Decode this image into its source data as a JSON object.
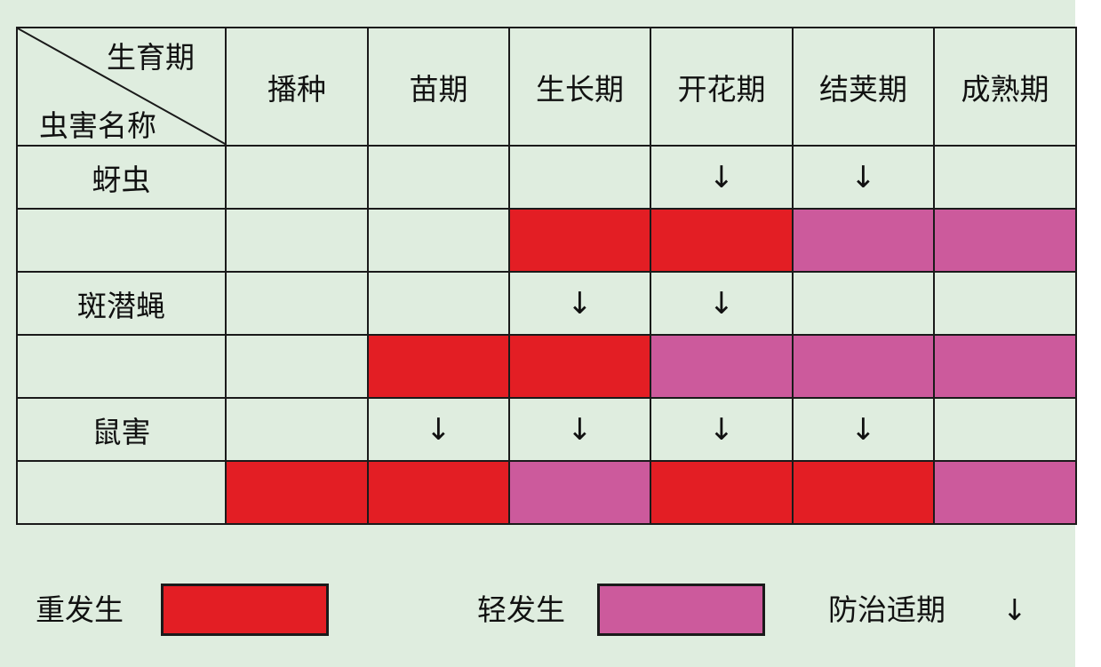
{
  "colors": {
    "heavy": "#e31e24",
    "light": "#cc5a9c",
    "background": "#dfeddf"
  },
  "header": {
    "corner_top": "生育期",
    "corner_bottom": "虫害名称",
    "stages": [
      "播种",
      "苗期",
      "生长期",
      "开花期",
      "结荚期",
      "成熟期"
    ]
  },
  "pests": [
    {
      "name": "蚜虫",
      "control_arrows": [
        false,
        false,
        false,
        true,
        true,
        false
      ],
      "severity": [
        "",
        "",
        "heavy",
        "heavy",
        "light",
        "light"
      ]
    },
    {
      "name": "斑潜蝇",
      "control_arrows": [
        false,
        false,
        true,
        true,
        false,
        false
      ],
      "severity": [
        "",
        "heavy",
        "heavy",
        "light",
        "light",
        "light"
      ]
    },
    {
      "name": "鼠害",
      "control_arrows": [
        false,
        true,
        true,
        true,
        true,
        false
      ],
      "severity": [
        "heavy",
        "heavy",
        "light",
        "heavy",
        "heavy",
        "light"
      ]
    }
  ],
  "arrow_symbol": "↓",
  "legend": {
    "heavy_label": "重发生",
    "light_label": "轻发生",
    "control_label": "防治适期",
    "control_symbol": "↓"
  }
}
